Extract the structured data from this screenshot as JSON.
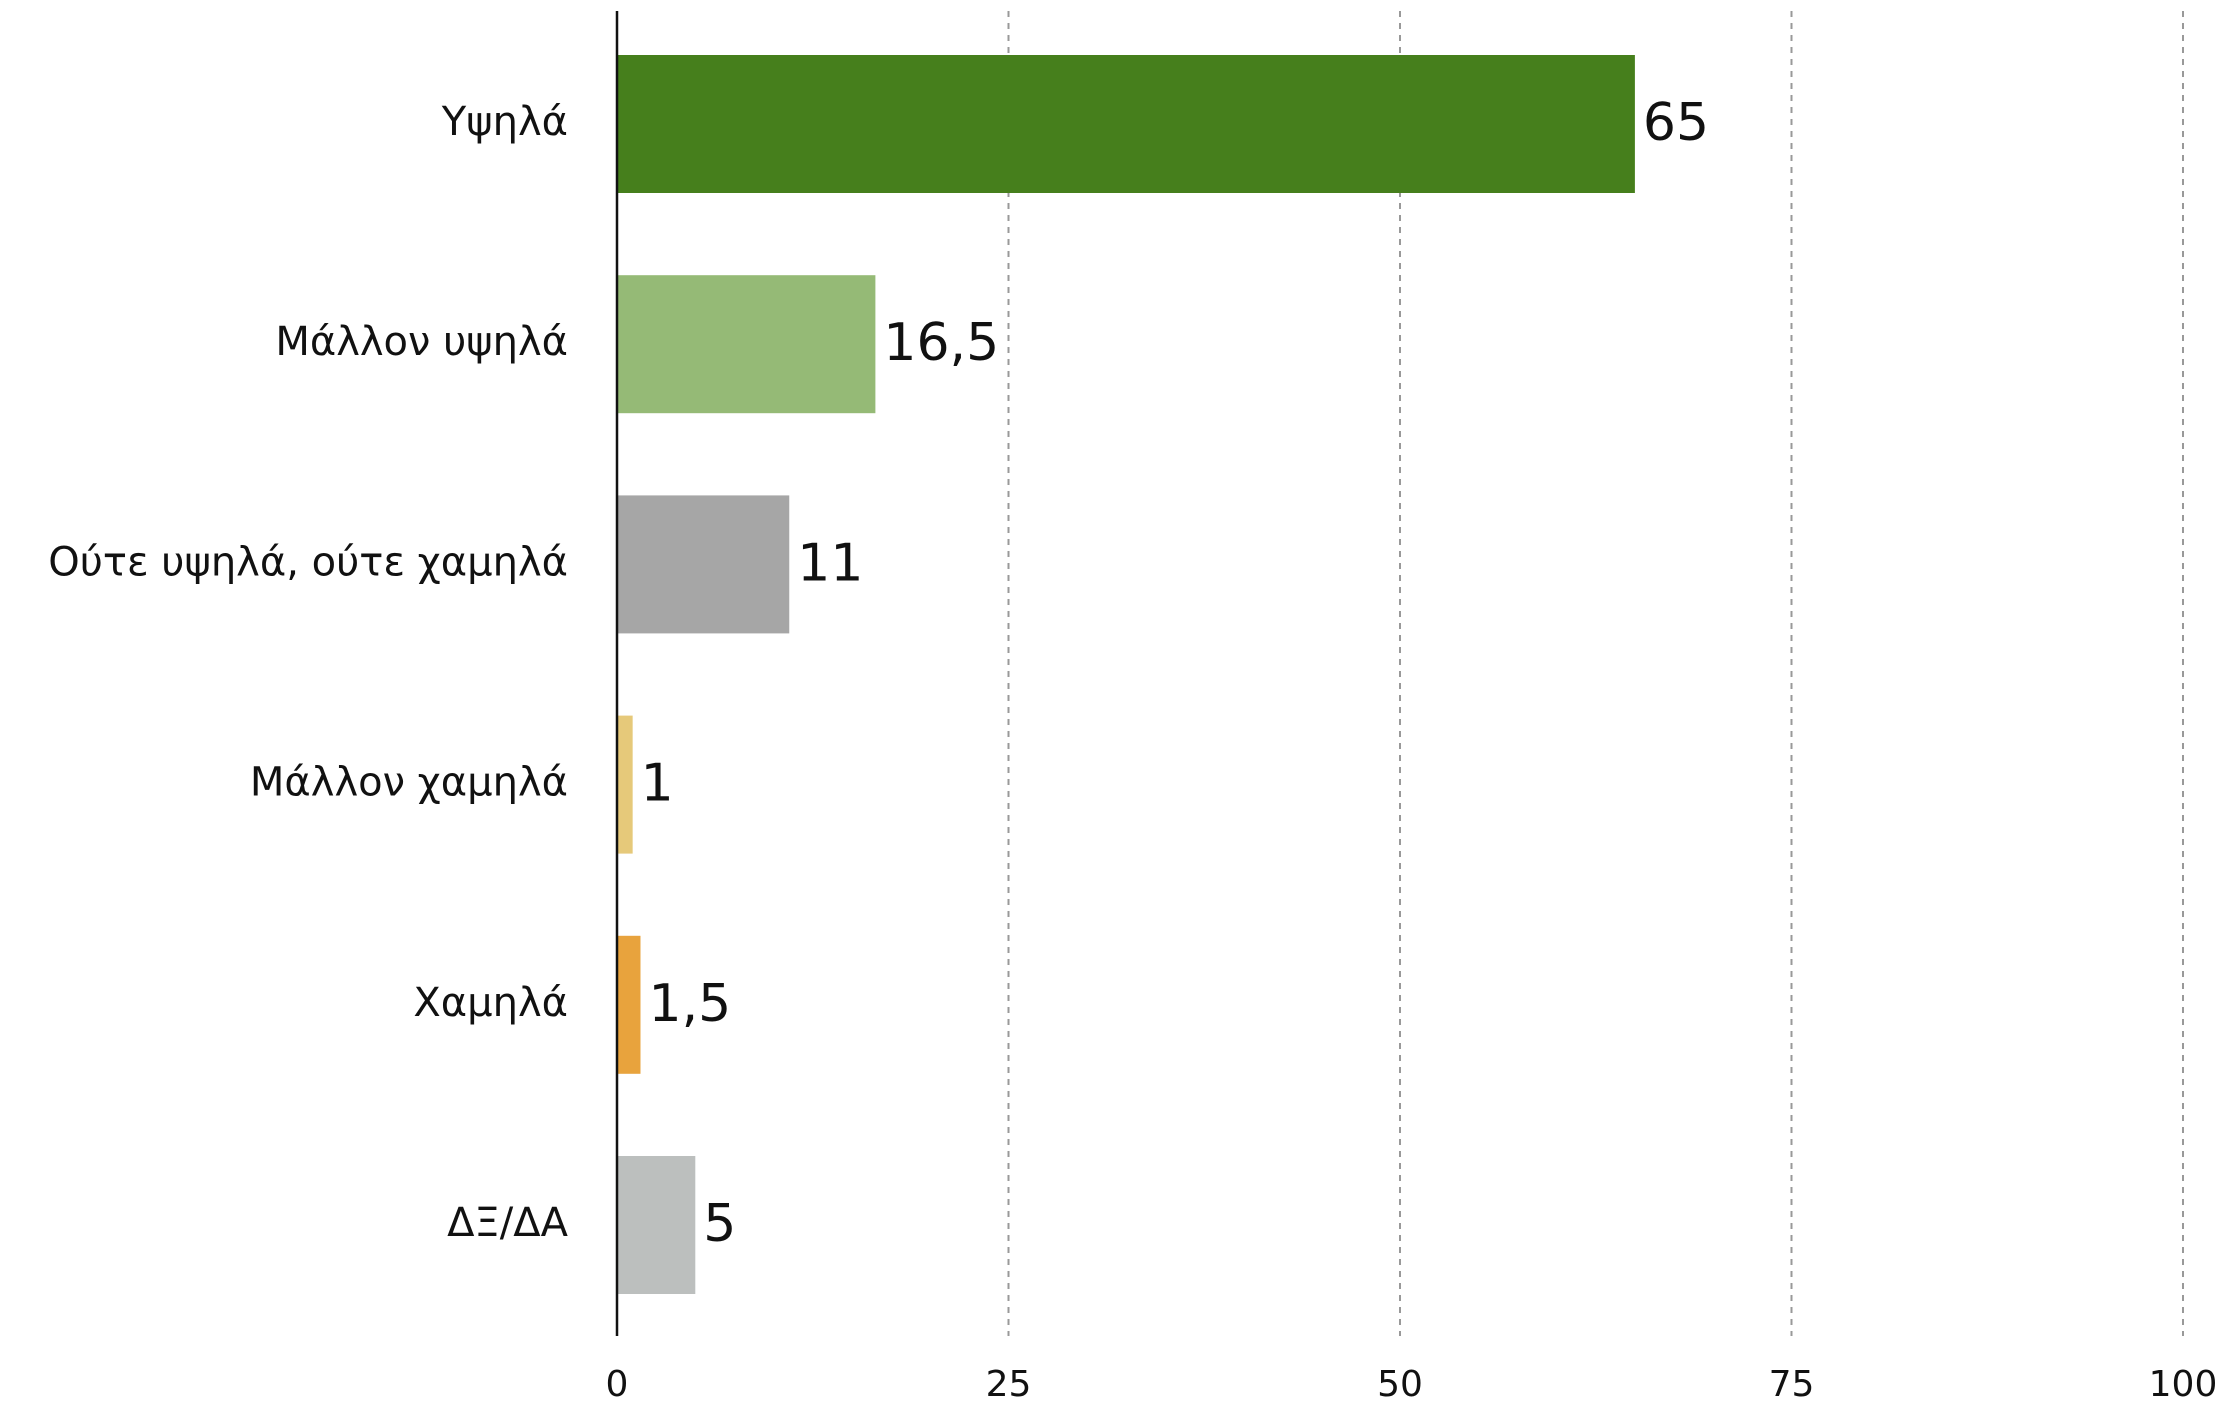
{
  "chart_data": {
    "type": "bar",
    "orientation": "horizontal",
    "categories": [
      "Υψηλά",
      "Μάλλον υψηλά",
      "Ούτε υψηλά, ούτε χαμηλά",
      "Μάλλον χαμηλά",
      "Χαμηλά",
      "ΔΞ/ΔΑ"
    ],
    "values": [
      65,
      16.5,
      11,
      1,
      1.5,
      5
    ],
    "value_labels": [
      "65",
      "16,5",
      "11",
      "1",
      "1,5",
      "5"
    ],
    "colors": [
      "#467f1c",
      "#95ba76",
      "#a6a6a6",
      "#e6c97a",
      "#e8a33d",
      "#bcbfbe"
    ],
    "xlim": [
      0,
      100
    ],
    "xticks": [
      0,
      25,
      50,
      75,
      100
    ],
    "grid": true
  }
}
